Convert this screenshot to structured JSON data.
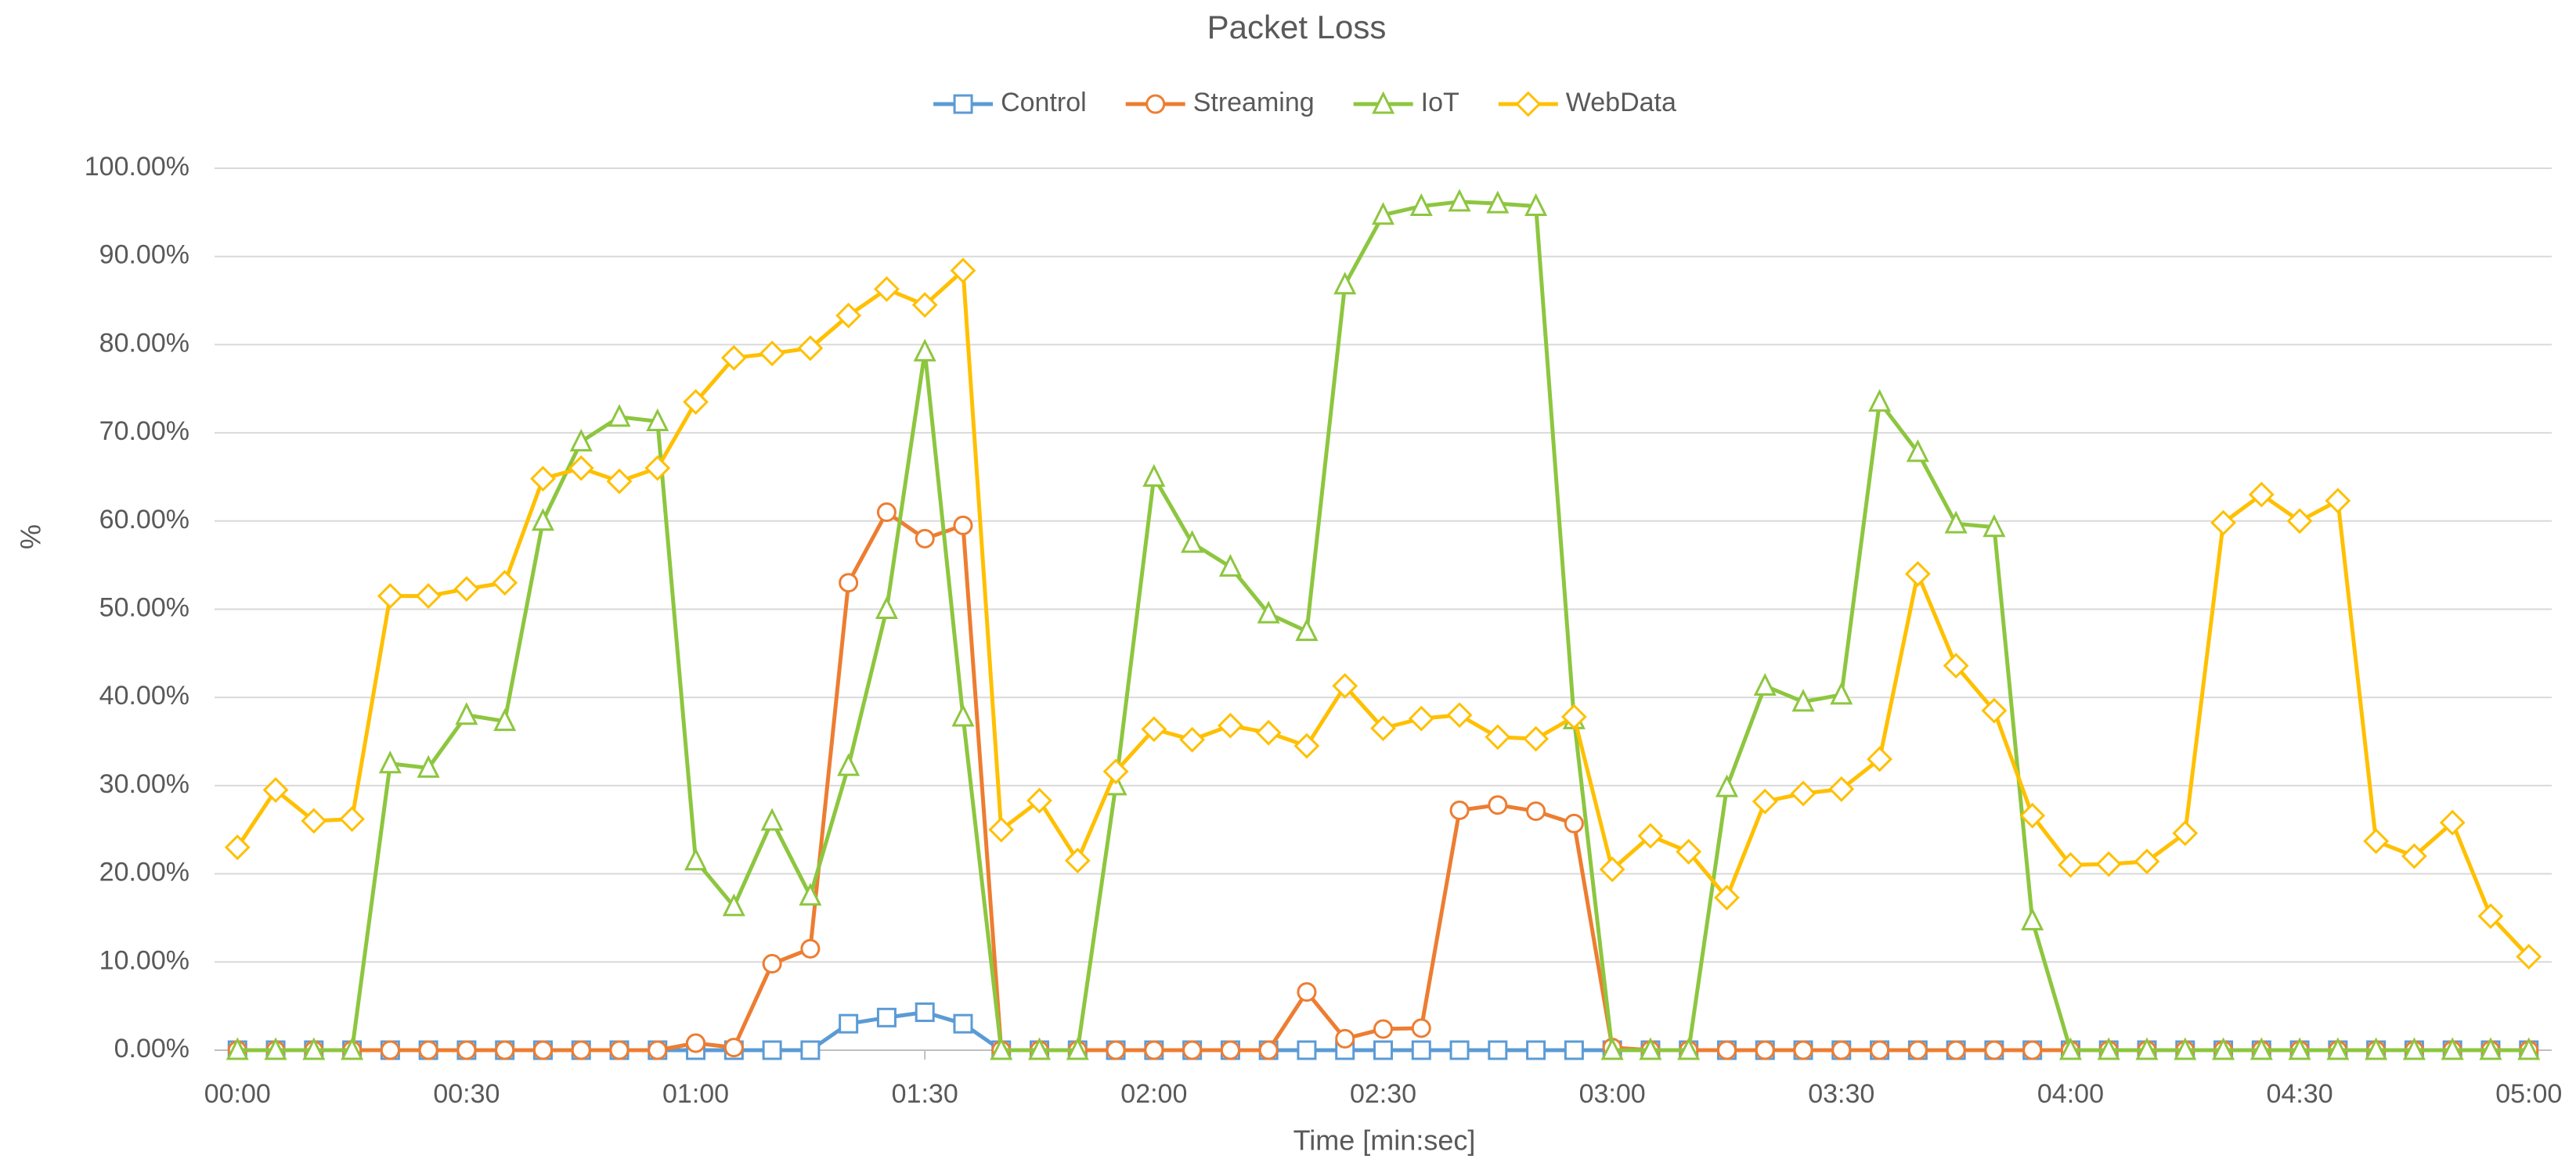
{
  "chart_data": {
    "type": "line",
    "title": "Packet Loss",
    "x_label": "Time [min:sec]",
    "y_label": "%",
    "x": [
      0,
      5,
      10,
      15,
      20,
      25,
      30,
      35,
      40,
      45,
      50,
      55,
      60,
      65,
      70,
      75,
      80,
      85,
      90,
      95,
      100,
      105,
      110,
      115,
      120,
      125,
      130,
      135,
      140,
      145,
      150,
      155,
      160,
      165,
      170,
      175,
      180,
      185,
      190,
      195,
      200,
      205,
      210,
      215,
      220,
      225,
      230,
      235,
      240,
      245,
      250,
      255,
      260,
      265,
      270,
      275,
      280,
      285,
      290,
      295,
      300
    ],
    "xlim": [
      -3,
      303
    ],
    "xticks": [
      {
        "value": 0,
        "label": "00:00"
      },
      {
        "value": 30,
        "label": "00:30"
      },
      {
        "value": 60,
        "label": "01:00"
      },
      {
        "value": 90,
        "label": "01:30"
      },
      {
        "value": 120,
        "label": "02:00"
      },
      {
        "value": 150,
        "label": "02:30"
      },
      {
        "value": 180,
        "label": "03:00"
      },
      {
        "value": 210,
        "label": "03:30"
      },
      {
        "value": 240,
        "label": "04:00"
      },
      {
        "value": 270,
        "label": "04:30"
      },
      {
        "value": 300,
        "label": "05:00"
      }
    ],
    "ylim": [
      0,
      100
    ],
    "yticks": [
      {
        "value": 0,
        "label": "0.00%"
      },
      {
        "value": 10,
        "label": "10.00%"
      },
      {
        "value": 20,
        "label": "20.00%"
      },
      {
        "value": 30,
        "label": "30.00%"
      },
      {
        "value": 40,
        "label": "40.00%"
      },
      {
        "value": 50,
        "label": "50.00%"
      },
      {
        "value": 60,
        "label": "60.00%"
      },
      {
        "value": 70,
        "label": "70.00%"
      },
      {
        "value": 80,
        "label": "80.00%"
      },
      {
        "value": 90,
        "label": "90.00%"
      },
      {
        "value": 100,
        "label": "100.00%"
      }
    ],
    "grid": true,
    "legend": "top",
    "series": [
      {
        "name": "Control",
        "color": "#5b9bd5",
        "marker": "square",
        "values": [
          0,
          0,
          0,
          0,
          0,
          0,
          0,
          0,
          0,
          0,
          0,
          0,
          0,
          0,
          0,
          0,
          3,
          3.7,
          4.3,
          3,
          0,
          0,
          0,
          0,
          0,
          0,
          0,
          0,
          0,
          0,
          0,
          0,
          0,
          0,
          0,
          0,
          0,
          0,
          0,
          0,
          0,
          0,
          0,
          0,
          0,
          0,
          0,
          0,
          0,
          0,
          0,
          0,
          0,
          0,
          0,
          0,
          0,
          0,
          0,
          0,
          0
        ]
      },
      {
        "name": "Streaming",
        "color": "#ed7d31",
        "marker": "circle",
        "values": [
          0,
          0,
          0,
          0,
          0,
          0,
          0,
          0,
          0,
          0,
          0,
          0,
          0.8,
          0.3,
          9.8,
          11.5,
          53,
          61,
          58,
          59.5,
          0,
          0,
          0,
          0,
          0,
          0,
          0,
          0,
          6.6,
          1.3,
          2.4,
          2.5,
          27.2,
          27.8,
          27.1,
          25.7,
          0.3,
          0,
          0,
          0,
          0,
          0,
          0,
          0,
          0,
          0,
          0,
          0,
          0,
          0,
          0,
          0,
          0,
          0,
          0,
          0,
          0,
          0,
          0,
          0,
          0
        ]
      },
      {
        "name": "IoT",
        "color": "#8dc63f",
        "marker": "triangle",
        "values": [
          0,
          0,
          0,
          0,
          32.5,
          32,
          38,
          37.3,
          60,
          69,
          71.8,
          71.3,
          21.5,
          16.3,
          26,
          17.5,
          32.2,
          50,
          79.2,
          37.8,
          0,
          0,
          0,
          30,
          65,
          57.5,
          54.8,
          49.5,
          47.5,
          86.8,
          94.7,
          95.7,
          96.2,
          96,
          95.7,
          37.5,
          0,
          0,
          0,
          29.8,
          41.3,
          39.5,
          40.3,
          73.5,
          67.8,
          59.7,
          59.3,
          14.7,
          0,
          0,
          0,
          0,
          0,
          0,
          0,
          0,
          0,
          0,
          0,
          0,
          0
        ]
      },
      {
        "name": "WebData",
        "color": "#ffc000",
        "marker": "diamond",
        "values": [
          23,
          29.5,
          26,
          26.2,
          51.5,
          51.5,
          52.3,
          53,
          64.8,
          66,
          64.5,
          66,
          73.5,
          78.5,
          79,
          79.6,
          83.3,
          86.3,
          84.5,
          88.4,
          25,
          28.3,
          21.5,
          31.6,
          36.4,
          35.2,
          36.8,
          36,
          34.5,
          41.3,
          36.5,
          37.6,
          38,
          35.5,
          35.3,
          37.8,
          20.5,
          24.3,
          22.5,
          17.3,
          28.2,
          29.1,
          29.6,
          33,
          54,
          43.6,
          38.5,
          26.6,
          21,
          21.1,
          21.4,
          24.6,
          59.8,
          63,
          60,
          62.3,
          23.7,
          22,
          25.8,
          15.2,
          10.6
        ]
      }
    ]
  }
}
